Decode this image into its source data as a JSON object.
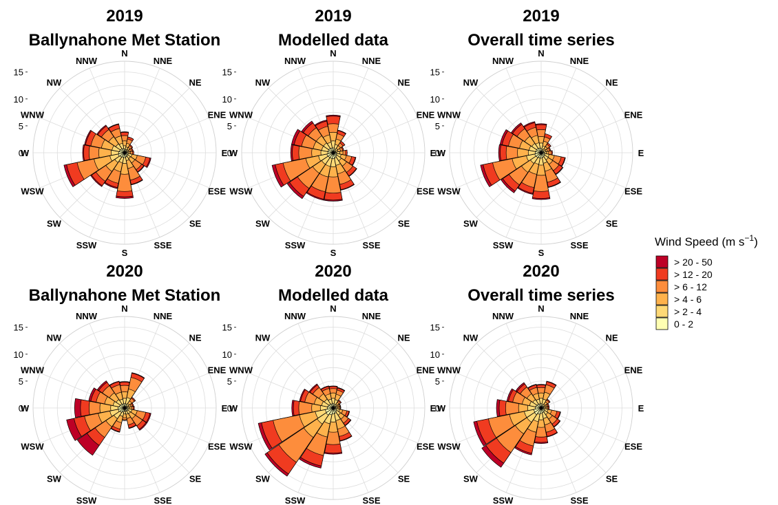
{
  "colors": {
    "0 - 2": "#FFFFB2",
    "> 2 - 4": "#FED976",
    "> 4 - 6": "#FEB24C",
    "> 6 - 12": "#FD8D3C",
    "> 12 - 20": "#F03B20",
    "> 20 - 50": "#BD0026"
  },
  "legend": {
    "title": "Wind Speed (m s",
    "title_superscript": "−1",
    "title_close": ")",
    "entries": [
      "> 20 - 50",
      "> 12 - 20",
      "> 6 - 12",
      "> 4 - 6",
      "> 2 - 4",
      "0 - 2"
    ]
  },
  "chart_data": [
    {
      "type": "wind-rose",
      "title": "2019",
      "subtitle": "Ballynahone Met Station",
      "directions": [
        "N",
        "NNE",
        "NE",
        "ENE",
        "E",
        "ESE",
        "SE",
        "SSE",
        "S",
        "SSW",
        "SW",
        "WSW",
        "W",
        "WNW",
        "NW",
        "NNW"
      ],
      "r_axis": {
        "ticks": [
          0,
          5,
          10,
          15
        ],
        "max": 17
      },
      "series": [
        {
          "name": "0 - 2",
          "values": [
            0.7,
            0.6,
            0.5,
            0.5,
            0.5,
            0.7,
            0.7,
            0.8,
            0.9,
            0.9,
            1.0,
            1.2,
            1.1,
            1.0,
            0.9,
            0.8
          ]
        },
        {
          "name": "> 2 - 4",
          "values": [
            1.3,
            1.1,
            0.8,
            0.8,
            0.8,
            1.4,
            1.3,
            1.5,
            2.0,
            1.9,
            2.2,
            2.8,
            2.5,
            2.4,
            2.0,
            1.8
          ]
        },
        {
          "name": "> 4 - 6",
          "values": [
            2.2,
            1.8,
            1.2,
            1.1,
            1.1,
            2.4,
            2.3,
            3.0,
            4.0,
            3.6,
            4.2,
            5.8,
            4.8,
            4.4,
            3.6,
            3.2
          ]
        },
        {
          "name": "> 6 - 12",
          "values": [
            3.2,
            2.6,
            1.6,
            1.4,
            1.5,
            4.0,
            3.8,
            5.2,
            7.2,
            5.8,
            6.4,
            9.0,
            6.6,
            6.4,
            5.2,
            4.6
          ]
        },
        {
          "name": "> 12 - 20",
          "values": [
            3.8,
            3.0,
            1.8,
            1.6,
            1.7,
            4.8,
            4.3,
            6.0,
            8.2,
            6.6,
            7.4,
            11.0,
            7.6,
            7.4,
            6.0,
            5.4
          ]
        },
        {
          "name": "> 20 - 50",
          "values": [
            3.9,
            3.0,
            1.8,
            1.6,
            1.7,
            5.0,
            4.4,
            6.1,
            8.5,
            6.8,
            7.6,
            11.5,
            7.8,
            7.6,
            6.2,
            5.5
          ]
        }
      ]
    },
    {
      "type": "wind-rose",
      "title": "2019",
      "subtitle": "Modelled data",
      "directions": [
        "N",
        "NNE",
        "NE",
        "ENE",
        "E",
        "ESE",
        "SE",
        "SSE",
        "S",
        "SSW",
        "SW",
        "WSW",
        "W",
        "WNW",
        "NW",
        "NNW"
      ],
      "r_axis": {
        "ticks": [
          0,
          5,
          10,
          15
        ],
        "max": 17
      },
      "series": [
        {
          "name": "0 - 2",
          "values": [
            0.9,
            0.7,
            0.5,
            0.5,
            0.6,
            0.7,
            0.8,
            1.0,
            1.1,
            1.1,
            1.1,
            1.2,
            1.0,
            1.0,
            1.0,
            0.9
          ]
        },
        {
          "name": "> 2 - 4",
          "values": [
            2.2,
            1.6,
            1.0,
            0.9,
            1.2,
            1.5,
            1.8,
            2.4,
            2.6,
            2.6,
            2.6,
            2.8,
            2.3,
            2.2,
            2.2,
            2.0
          ]
        },
        {
          "name": "> 4 - 6",
          "values": [
            3.8,
            2.6,
            1.6,
            1.4,
            1.8,
            2.5,
            3.0,
            4.0,
            4.5,
            4.6,
            4.6,
            5.2,
            4.0,
            3.8,
            3.8,
            3.4
          ]
        },
        {
          "name": "> 6 - 12",
          "values": [
            5.4,
            3.6,
            2.2,
            1.8,
            2.3,
            3.5,
            4.4,
            6.0,
            7.5,
            7.4,
            8.0,
            9.5,
            6.4,
            6.0,
            5.6,
            5.0
          ]
        },
        {
          "name": "> 12 - 20",
          "values": [
            6.8,
            4.2,
            2.6,
            2.0,
            2.6,
            4.2,
            5.2,
            7.0,
            8.8,
            8.8,
            9.8,
            11.0,
            7.6,
            7.4,
            6.7,
            6.0
          ]
        },
        {
          "name": "> 20 - 50",
          "values": [
            7.0,
            4.3,
            2.6,
            2.0,
            2.6,
            4.3,
            5.3,
            7.1,
            9.0,
            9.0,
            10.3,
            11.6,
            7.9,
            7.9,
            7.1,
            6.2
          ]
        }
      ]
    },
    {
      "type": "wind-rose",
      "title": "2019",
      "subtitle": "Overall time series",
      "directions": [
        "N",
        "NNE",
        "NE",
        "ENE",
        "E",
        "ESE",
        "SE",
        "SSE",
        "S",
        "SSW",
        "SW",
        "WSW",
        "W",
        "WNW",
        "NW",
        "NNW"
      ],
      "r_axis": {
        "ticks": [
          0,
          5,
          10,
          15
        ],
        "max": 17
      },
      "series": [
        {
          "name": "0 - 2",
          "values": [
            0.8,
            0.6,
            0.5,
            0.5,
            0.6,
            0.7,
            0.8,
            0.9,
            1.0,
            1.0,
            1.1,
            1.2,
            1.1,
            1.0,
            1.0,
            0.9
          ]
        },
        {
          "name": "> 2 - 4",
          "values": [
            1.8,
            1.3,
            0.9,
            0.9,
            1.0,
            1.5,
            1.6,
            2.0,
            2.3,
            2.2,
            2.4,
            2.8,
            2.4,
            2.3,
            2.1,
            1.9
          ]
        },
        {
          "name": "> 4 - 6",
          "values": [
            3.0,
            2.2,
            1.4,
            1.2,
            1.4,
            2.5,
            2.6,
            3.5,
            4.2,
            4.1,
            4.4,
            5.5,
            4.4,
            4.1,
            3.7,
            3.3
          ]
        },
        {
          "name": "> 6 - 12",
          "values": [
            4.3,
            3.0,
            1.9,
            1.6,
            1.9,
            3.8,
            4.0,
            5.6,
            7.2,
            6.6,
            7.2,
            9.2,
            6.5,
            6.2,
            5.4,
            4.8
          ]
        },
        {
          "name": "> 12 - 20",
          "values": [
            5.2,
            3.6,
            2.2,
            1.8,
            2.1,
            4.5,
            4.8,
            6.5,
            8.5,
            7.7,
            8.6,
            11.0,
            7.6,
            7.4,
            6.4,
            5.7
          ]
        },
        {
          "name": "> 20 - 50",
          "values": [
            5.4,
            3.6,
            2.2,
            1.8,
            2.1,
            4.6,
            4.9,
            6.6,
            8.7,
            7.9,
            9.0,
            11.5,
            7.9,
            7.8,
            6.7,
            5.9
          ]
        }
      ]
    },
    {
      "type": "wind-rose",
      "title": "2020",
      "subtitle": "Ballynahone Met Station",
      "directions": [
        "N",
        "NNE",
        "NE",
        "ENE",
        "E",
        "ESE",
        "SE",
        "SSE",
        "S",
        "SSW",
        "SW",
        "WSW",
        "W",
        "WNW",
        "NW",
        "NNW"
      ],
      "r_axis": {
        "ticks": [
          0,
          5,
          10,
          15
        ],
        "max": 17
      },
      "series": [
        {
          "name": "0 - 2",
          "values": [
            0.8,
            0.8,
            0.5,
            0.5,
            0.5,
            0.7,
            0.7,
            0.6,
            0.6,
            0.8,
            1.0,
            1.2,
            1.2,
            1.0,
            0.9,
            0.8
          ]
        },
        {
          "name": "> 2 - 4",
          "values": [
            1.8,
            2.0,
            1.0,
            0.8,
            0.9,
            1.4,
            1.3,
            1.2,
            1.1,
            1.6,
            2.4,
            2.8,
            2.6,
            2.2,
            1.9,
            1.7
          ]
        },
        {
          "name": "> 4 - 6",
          "values": [
            3.0,
            3.6,
            1.6,
            1.2,
            1.3,
            2.4,
            2.4,
            2.0,
            1.8,
            2.8,
            4.2,
            5.0,
            4.6,
            3.8,
            3.4,
            3.0
          ]
        },
        {
          "name": "> 6 - 12",
          "values": [
            4.2,
            5.8,
            2.2,
            1.5,
            1.6,
            4.0,
            4.0,
            3.2,
            2.2,
            4.0,
            6.6,
            7.6,
            6.6,
            5.4,
            5.0,
            4.4
          ]
        },
        {
          "name": "> 12 - 20",
          "values": [
            4.8,
            6.6,
            2.4,
            1.7,
            1.8,
            4.8,
            4.8,
            3.8,
            2.3,
            4.5,
            8.4,
            9.6,
            8.2,
            6.4,
            5.8,
            5.0
          ]
        },
        {
          "name": "> 20 - 50",
          "values": [
            4.9,
            6.7,
            2.4,
            1.7,
            1.8,
            5.0,
            5.0,
            3.9,
            2.3,
            4.6,
            10.6,
            11.0,
            9.3,
            6.8,
            6.1,
            5.1
          ]
        }
      ]
    },
    {
      "type": "wind-rose",
      "title": "2020",
      "subtitle": "Modelled data",
      "directions": [
        "N",
        "NNE",
        "NE",
        "ENE",
        "E",
        "ESE",
        "SE",
        "SSE",
        "S",
        "SSW",
        "SW",
        "WSW",
        "W",
        "WNW",
        "NW",
        "NNW"
      ],
      "r_axis": {
        "ticks": [
          0,
          5,
          10,
          15
        ],
        "max": 17
      },
      "series": [
        {
          "name": "0 - 2",
          "values": [
            0.8,
            0.7,
            0.5,
            0.5,
            0.5,
            0.6,
            0.8,
            1.0,
            1.1,
            1.3,
            1.6,
            1.5,
            1.1,
            1.0,
            0.9,
            0.8
          ]
        },
        {
          "name": "> 2 - 4",
          "values": [
            1.8,
            1.6,
            0.9,
            0.8,
            0.8,
            1.2,
            1.6,
            2.4,
            2.6,
            3.0,
            3.6,
            3.4,
            2.4,
            2.2,
            2.0,
            1.7
          ]
        },
        {
          "name": "> 4 - 6",
          "values": [
            2.8,
            2.6,
            1.3,
            1.1,
            1.1,
            1.8,
            2.5,
            4.0,
            4.5,
            5.5,
            6.6,
            6.4,
            4.0,
            3.6,
            3.2,
            2.7
          ]
        },
        {
          "name": "> 6 - 12",
          "values": [
            3.6,
            3.4,
            1.6,
            1.3,
            1.3,
            2.6,
            3.4,
            5.4,
            6.8,
            9.0,
            12.2,
            11.4,
            6.4,
            5.4,
            4.6,
            3.7
          ]
        },
        {
          "name": "> 12 - 20",
          "values": [
            4.0,
            3.8,
            1.8,
            1.4,
            1.4,
            3.0,
            3.9,
            6.2,
            8.4,
            11.0,
            14.8,
            13.6,
            7.4,
            6.2,
            5.2,
            4.1
          ]
        },
        {
          "name": "> 20 - 50",
          "values": [
            4.1,
            3.9,
            1.8,
            1.4,
            1.4,
            3.1,
            4.0,
            6.3,
            8.6,
            11.4,
            15.3,
            14.2,
            7.7,
            6.4,
            5.4,
            4.2
          ]
        }
      ]
    },
    {
      "type": "wind-rose",
      "title": "2020",
      "subtitle": "Overall time series",
      "directions": [
        "N",
        "NNE",
        "NE",
        "ENE",
        "E",
        "ESE",
        "SE",
        "SSE",
        "S",
        "SSW",
        "SW",
        "WSW",
        "W",
        "WNW",
        "NW",
        "NNW"
      ],
      "r_axis": {
        "ticks": [
          0,
          5,
          10,
          15
        ],
        "max": 17
      },
      "series": [
        {
          "name": "0 - 2",
          "values": [
            0.8,
            0.7,
            0.5,
            0.5,
            0.5,
            0.6,
            0.8,
            0.9,
            1.0,
            1.2,
            1.5,
            1.4,
            1.1,
            1.0,
            0.9,
            0.8
          ]
        },
        {
          "name": "> 2 - 4",
          "values": [
            1.8,
            1.7,
            0.9,
            0.8,
            0.8,
            1.3,
            1.5,
            2.0,
            2.2,
            2.6,
            3.2,
            3.2,
            2.5,
            2.2,
            1.9,
            1.7
          ]
        },
        {
          "name": "> 4 - 6",
          "values": [
            2.8,
            3.0,
            1.4,
            1.1,
            1.1,
            2.0,
            2.5,
            3.2,
            3.6,
            4.6,
            5.8,
            6.0,
            4.2,
            3.6,
            3.2,
            2.8
          ]
        },
        {
          "name": "> 6 - 12",
          "values": [
            3.8,
            4.4,
            1.8,
            1.3,
            1.3,
            3.0,
            3.6,
            4.6,
            5.4,
            7.2,
            10.0,
            10.0,
            6.6,
            5.4,
            4.7,
            3.9
          ]
        },
        {
          "name": "> 12 - 20",
          "values": [
            4.3,
            5.0,
            2.0,
            1.5,
            1.5,
            3.6,
            4.2,
            5.4,
            6.4,
            8.6,
            12.4,
            12.2,
            7.8,
            6.2,
            5.4,
            4.4
          ]
        },
        {
          "name": "> 20 - 50",
          "values": [
            4.4,
            5.1,
            2.0,
            1.5,
            1.5,
            3.7,
            4.3,
            5.5,
            6.6,
            8.9,
            13.3,
            12.8,
            8.3,
            6.5,
            5.7,
            4.5
          ]
        }
      ]
    }
  ]
}
